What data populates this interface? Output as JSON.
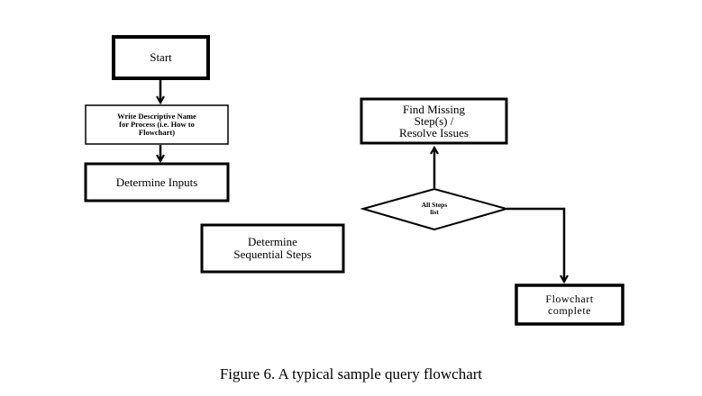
{
  "flowchart": {
    "start": "Start",
    "write_name": "Write Descriptive Name\nfor Process (i.e. How to\nFlowchart)",
    "determine_inputs": "Determine Inputs",
    "determine_steps": "Determine\nSequential Steps",
    "decision": "All Steps\nlist",
    "find_missing": "Find Missing\nStep(s) /\nResolve Issues",
    "complete": "Flowchart\ncomplete"
  },
  "caption": "Figure 6. A typical sample query flowchart",
  "colors": {
    "stroke": "#000000",
    "background": "#ffffff"
  }
}
